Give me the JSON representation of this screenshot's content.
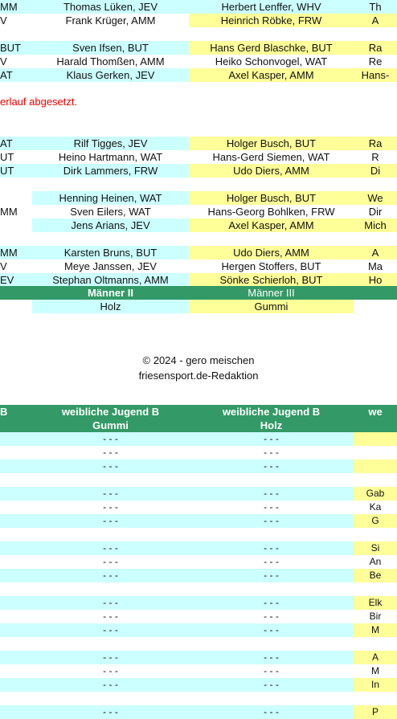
{
  "table1": {
    "groups": [
      {
        "rows": [
          {
            "c0": "MM",
            "c1": "Thomas Lüken, JEV",
            "c2": "Herbert Lenffer, WHV",
            "c3": "Th",
            "c1bg": "cyan",
            "c2bg": "cyan",
            "c3bg": "cyan",
            "c0bg": "cyan"
          },
          {
            "c0": "V",
            "c1": "Frank Krüger, AMM",
            "c2": "Heinrich Röbke, FRW",
            "c3": "A",
            "c1bg": "white",
            "c2bg": "yellow",
            "c3bg": "yellow",
            "c0bg": "white"
          }
        ]
      },
      {
        "rows": [
          {
            "c0": "BUT",
            "c1": "Sven Ifsen, BUT",
            "c2": "Hans Gerd Blaschke, BUT",
            "c3": "Ra",
            "c1bg": "cyan",
            "c2bg": "yellow",
            "c3bg": "yellow",
            "c0bg": "cyan"
          },
          {
            "c0": "V",
            "c1": "Harald Thomßen, AMM",
            "c2": "Heiko Schonvogel, WAT",
            "c3": "Re",
            "c1bg": "white",
            "c2bg": "white",
            "c3bg": "white",
            "c0bg": "white"
          },
          {
            "c0": "AT",
            "c1": "Klaus Gerken, JEV",
            "c2": "Axel Kasper, AMM",
            "c3": "Hans-",
            "c1bg": "cyan",
            "c2bg": "yellow",
            "c3bg": "yellow",
            "c0bg": "cyan"
          }
        ]
      }
    ],
    "note": "erlauf abgesetzt.",
    "groups2": [
      {
        "rows": [
          {
            "c0": "AT",
            "c1": "Rilf Tigges, JEV",
            "c2": "Holger Busch, BUT",
            "c3": "Ra",
            "c1bg": "cyan",
            "c2bg": "yellow",
            "c3bg": "yellow",
            "c0bg": "cyan"
          },
          {
            "c0": "UT",
            "c1": "Heino Hartmann, WAT",
            "c2": "Hans-Gerd Siemen, WAT",
            "c3": "R",
            "c1bg": "white",
            "c2bg": "white",
            "c3bg": "white",
            "c0bg": "white"
          },
          {
            "c0": "UT",
            "c1": "Dirk Lammers, FRW",
            "c2": "Udo Diers, AMM",
            "c3": "Di",
            "c1bg": "cyan",
            "c2bg": "yellow",
            "c3bg": "yellow",
            "c0bg": "cyan"
          }
        ]
      },
      {
        "rows": [
          {
            "c0": "",
            "c1": "Henning Heinen, WAT",
            "c2": "Holger Busch, BUT",
            "c3": "We",
            "c1bg": "cyan",
            "c2bg": "yellow",
            "c3bg": "yellow",
            "c0bg": "white"
          },
          {
            "c0": "MM",
            "c1": "Sven Eilers, WAT",
            "c2": "Hans-Georg Bohlken, FRW",
            "c3": "Dir",
            "c1bg": "white",
            "c2bg": "white",
            "c3bg": "white",
            "c0bg": "white"
          },
          {
            "c0": "",
            "c1": "Jens Arians, JEV",
            "c2": "Axel Kasper, AMM",
            "c3": "Mich",
            "c1bg": "cyan",
            "c2bg": "yellow",
            "c3bg": "yellow",
            "c0bg": "white"
          }
        ]
      },
      {
        "rows": [
          {
            "c0": "MM",
            "c1": "Karsten Bruns, BUT",
            "c2": "Udo Diers, AMM",
            "c3": "A",
            "c1bg": "cyan",
            "c2bg": "yellow",
            "c3bg": "yellow",
            "c0bg": "cyan"
          },
          {
            "c0": "V",
            "c1": "Meye Janssen, JEV",
            "c2": "Hergen Stoffers, BUT",
            "c3": "Ma",
            "c1bg": "white",
            "c2bg": "white",
            "c3bg": "white",
            "c0bg": "white"
          },
          {
            "c0": "EV",
            "c1": "Stephan Oltmanns, AMM",
            "c2": "Sönke Schierloh, BUT",
            "c3": "Ho",
            "c1bg": "cyan",
            "c2bg": "yellow",
            "c3bg": "yellow",
            "c0bg": "cyan"
          }
        ]
      }
    ],
    "header_row": {
      "c1": "Männer II",
      "c2": "Männer III"
    },
    "material_row": {
      "c1": "Holz",
      "c2": "Gummi"
    }
  },
  "footer": {
    "copyright": "© 2024 - gero meischen",
    "editor": "friesensport.de-Redaktion"
  },
  "table2": {
    "header": {
      "c0_line1": "B",
      "c1_line1": "weibliche Jugend B",
      "c1_line2": "Gummi",
      "c2_line1": "weibliche Jugend B",
      "c2_line2": "Holz",
      "c3_line1": "we"
    },
    "rows": [
      {
        "c1": "- - -",
        "c2": "- - -",
        "c3": "",
        "bg": "cyan",
        "c3bg": "yellow"
      },
      {
        "c1": "- - -",
        "c2": "- - -",
        "c3": "",
        "bg": "white",
        "c3bg": "white"
      },
      {
        "c1": "- - -",
        "c2": "- - -",
        "c3": "",
        "bg": "cyan",
        "c3bg": "yellow"
      },
      {
        "c1": "",
        "c2": "",
        "c3": "",
        "bg": "white",
        "c3bg": "white"
      },
      {
        "c1": "- - -",
        "c2": "- - -",
        "c3": "Gab",
        "bg": "cyan",
        "c3bg": "yellow"
      },
      {
        "c1": "- - -",
        "c2": "- - -",
        "c3": "Ka",
        "bg": "white",
        "c3bg": "white"
      },
      {
        "c1": "- - -",
        "c2": "- - -",
        "c3": "G",
        "bg": "cyan",
        "c3bg": "yellow"
      },
      {
        "c1": "",
        "c2": "",
        "c3": "",
        "bg": "white",
        "c3bg": "white"
      },
      {
        "c1": "- - -",
        "c2": "- - -",
        "c3": "Si",
        "bg": "cyan",
        "c3bg": "yellow"
      },
      {
        "c1": "- - -",
        "c2": "- - -",
        "c3": "An",
        "bg": "white",
        "c3bg": "white"
      },
      {
        "c1": "- - -",
        "c2": "- - -",
        "c3": "Be",
        "bg": "cyan",
        "c3bg": "yellow"
      },
      {
        "c1": "",
        "c2": "",
        "c3": "",
        "bg": "white",
        "c3bg": "white"
      },
      {
        "c1": "- - -",
        "c2": "- - -",
        "c3": "Elk",
        "bg": "cyan",
        "c3bg": "yellow"
      },
      {
        "c1": "- - -",
        "c2": "- - -",
        "c3": "Bir",
        "bg": "white",
        "c3bg": "white"
      },
      {
        "c1": "- - -",
        "c2": "- - -",
        "c3": "M",
        "bg": "cyan",
        "c3bg": "yellow"
      },
      {
        "c1": "",
        "c2": "",
        "c3": "",
        "bg": "white",
        "c3bg": "white"
      },
      {
        "c1": "- - -",
        "c2": "- - -",
        "c3": "A",
        "bg": "cyan",
        "c3bg": "yellow"
      },
      {
        "c1": "- - -",
        "c2": "- - -",
        "c3": "M",
        "bg": "white",
        "c3bg": "white"
      },
      {
        "c1": "- - -",
        "c2": "- - -",
        "c3": "In",
        "bg": "cyan",
        "c3bg": "yellow"
      },
      {
        "c1": "",
        "c2": "",
        "c3": "",
        "bg": "white",
        "c3bg": "white"
      },
      {
        "c1": "- - -",
        "c2": "- - -",
        "c3": "P",
        "bg": "cyan",
        "c3bg": "yellow"
      }
    ]
  }
}
